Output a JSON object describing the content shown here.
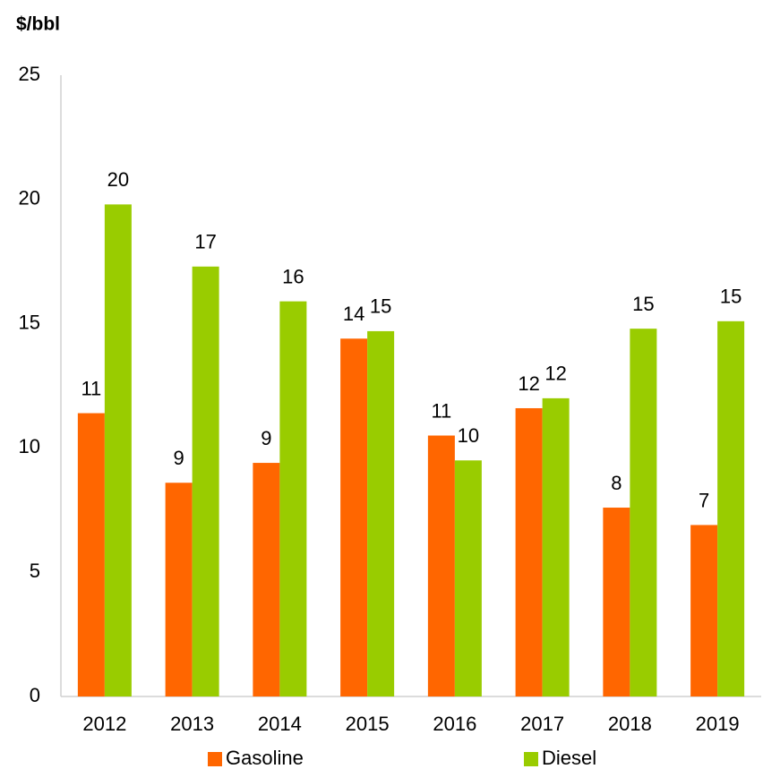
{
  "chart_data": {
    "type": "bar",
    "title": "$/bbl",
    "categories": [
      "2012",
      "2013",
      "2014",
      "2015",
      "2016",
      "2017",
      "2018",
      "2019"
    ],
    "series": [
      {
        "name": "Gasoline",
        "color": "#ff6600",
        "values": [
          11.4,
          8.6,
          9.4,
          14.4,
          10.5,
          11.6,
          7.6,
          6.9
        ],
        "value_labels": [
          "11",
          "9",
          "9",
          "14",
          "11",
          "12",
          "8",
          "7"
        ]
      },
      {
        "name": "Diesel",
        "color": "#99cc00",
        "values": [
          19.8,
          17.3,
          15.9,
          14.7,
          9.5,
          12.0,
          14.8,
          15.1
        ],
        "value_labels": [
          "20",
          "17",
          "16",
          "15",
          "10",
          "12",
          "15",
          "15"
        ]
      }
    ],
    "ylim": [
      0,
      25
    ],
    "yticks": [
      0,
      5,
      10,
      15,
      20,
      25
    ],
    "grid": false,
    "legend": "bottom"
  }
}
